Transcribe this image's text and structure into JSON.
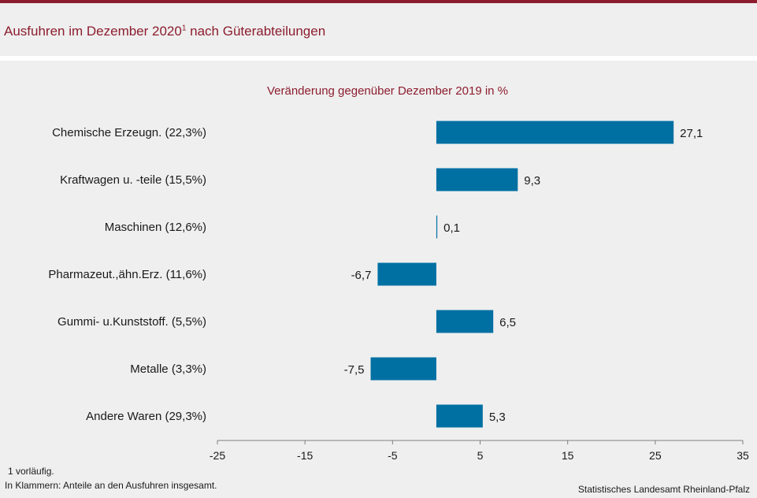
{
  "title": "Ausfuhren im Dezember 2020",
  "title_sup": "1",
  "title_rest": " nach Güterabteilungen",
  "footnote_1": "1 vorläufig.",
  "footnote_2": "In Klammern: Anteile an den Ausfuhren insgesamt.",
  "source": "Statistisches Landesamt Rheinland-Pfalz",
  "colors": {
    "bar": "#0070a3",
    "title": "#8c1d2e",
    "topbar": "#8c1d2e"
  },
  "chart_data": {
    "type": "bar",
    "orientation": "horizontal",
    "title": "Veränderung gegenüber Dezember 2019 in %",
    "categories": [
      "Chemische Erzeugn. (22,3%)",
      "Kraftwagen u. -teile (15,5%)",
      "Maschinen (12,6%)",
      "Pharmazeut.,ähn.Erz. (11,6%)",
      "Gummi- u.Kunststoff. (5,5%)",
      "Metalle (3,3%)",
      "Andere Waren (29,3%)"
    ],
    "values": [
      27.1,
      9.3,
      0.1,
      -6.7,
      6.5,
      -7.5,
      5.3
    ],
    "value_labels": [
      "27,1",
      "9,3",
      "0,1",
      "-6,7",
      "6,5",
      "-7,5",
      "5,3"
    ],
    "xlim": [
      -25,
      35
    ],
    "xticks": [
      -25,
      -15,
      -5,
      5,
      15,
      25,
      35
    ],
    "xtick_labels": [
      "-25",
      "-15",
      "-5",
      "5",
      "15",
      "25",
      "35"
    ],
    "grid": false,
    "legend": "none"
  }
}
